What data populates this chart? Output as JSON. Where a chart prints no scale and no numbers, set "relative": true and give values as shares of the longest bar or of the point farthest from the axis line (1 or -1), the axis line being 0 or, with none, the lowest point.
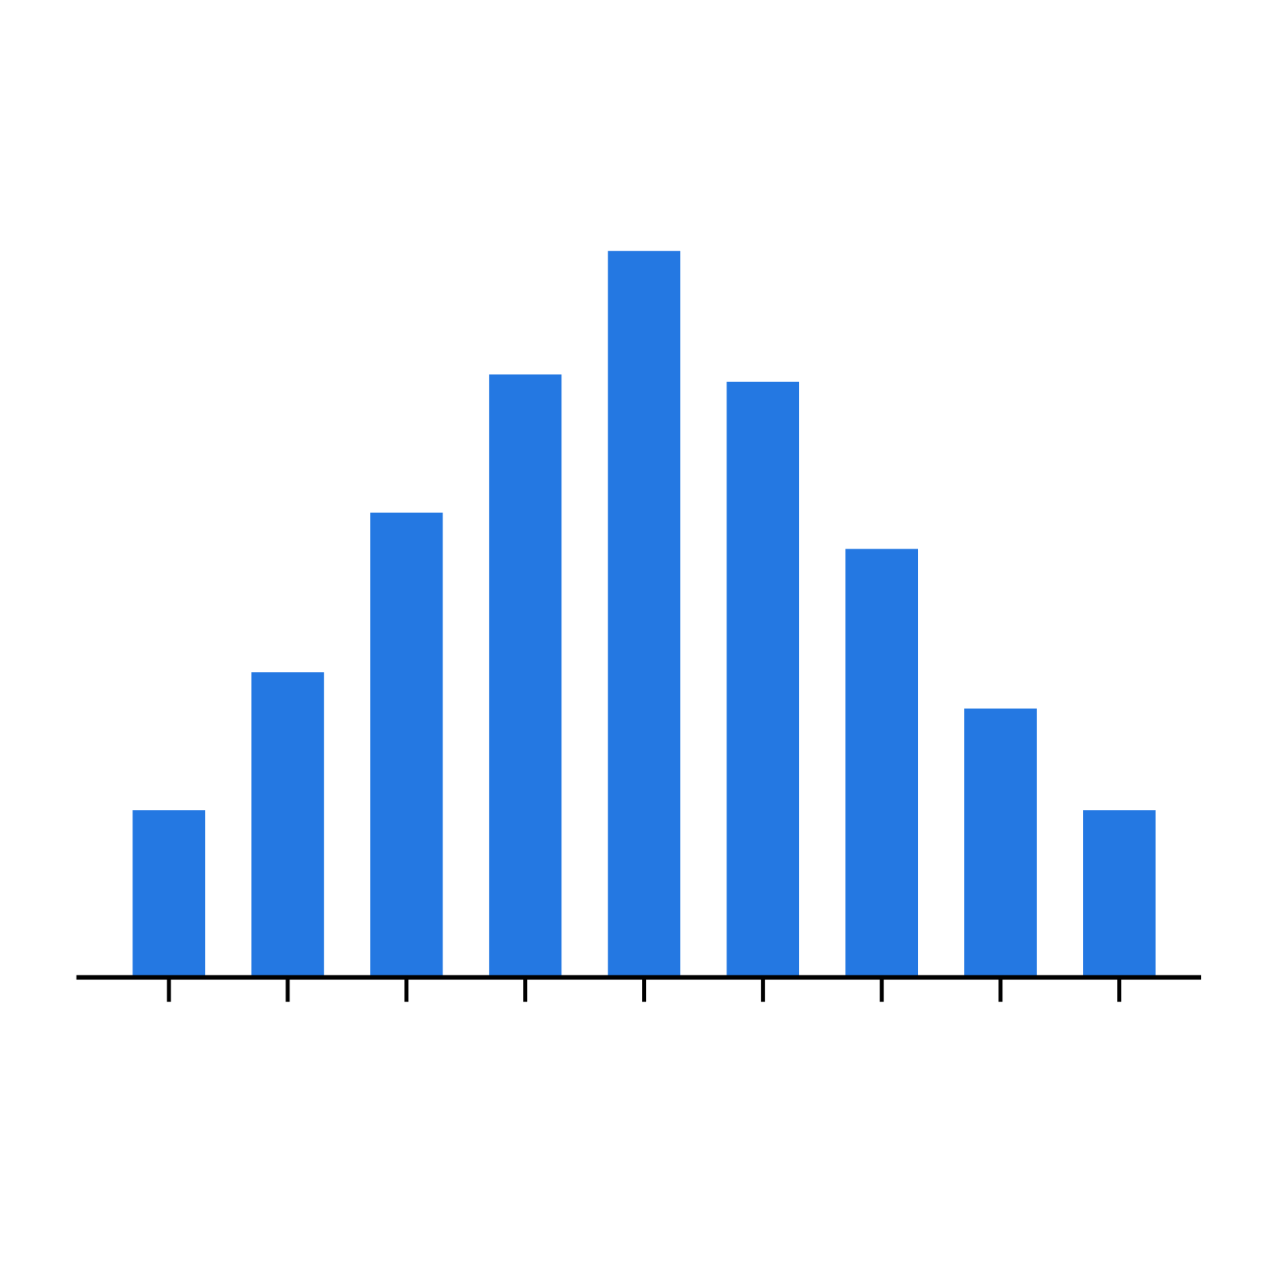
{
  "chart_data": {
    "type": "bar",
    "categories": [
      null,
      null,
      null,
      null,
      null,
      null,
      null,
      null,
      null
    ],
    "values": [
      0.23,
      0.42,
      0.64,
      0.83,
      1,
      0.82,
      0.59,
      0.37,
      0.23
    ],
    "relative": true,
    "color": "#2478e2"
  }
}
